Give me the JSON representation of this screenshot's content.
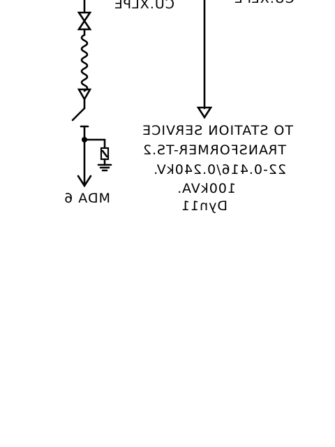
{
  "diagram": {
    "top_cut_label_left": "CU.XLPE",
    "top_cut_label_right": "CU.XLPE",
    "station_service": {
      "line1": "TO STATION SERVICE",
      "line2": "TRANSFORMER-TS.2",
      "line3": "22-0.416/0.240kV.",
      "line4": "100kVA.",
      "line5": "Dyn11"
    },
    "mda_label": "MDA 6"
  }
}
